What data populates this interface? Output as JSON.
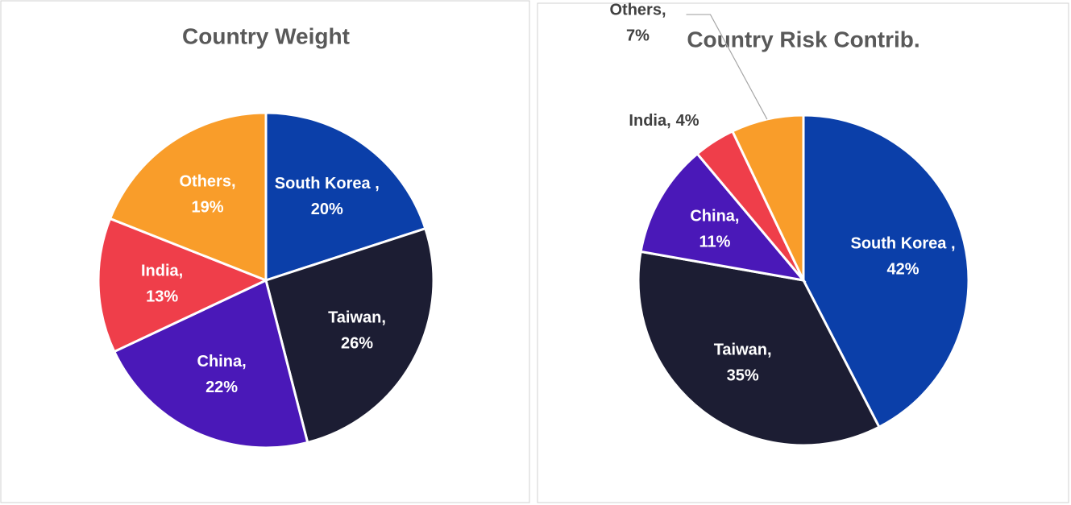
{
  "chart_data": [
    {
      "type": "pie",
      "title": "Country  Weight",
      "categories": [
        "South Korea ,",
        "Taiwan,",
        "China,",
        "India,",
        "Others,"
      ],
      "values": [
        20,
        26,
        22,
        13,
        19
      ],
      "value_labels": [
        "20%",
        "26%",
        "22%",
        "13%",
        "19%"
      ],
      "colors": [
        "#0b3fa9",
        "#1c1d33",
        "#4a18b8",
        "#ef3e4a",
        "#f99d2a"
      ]
    },
    {
      "type": "pie",
      "title": "Country  Risk Contrib.",
      "categories": [
        "South Korea ,",
        "Taiwan,",
        "China,",
        "India,",
        "Others,"
      ],
      "values": [
        42,
        35,
        11,
        4,
        7
      ],
      "value_labels": [
        "42%",
        "35%",
        "11%",
        "4%",
        "7%"
      ],
      "colors": [
        "#0b3fa9",
        "#1c1d33",
        "#4a18b8",
        "#ef3e4a",
        "#f99d2a"
      ]
    }
  ]
}
